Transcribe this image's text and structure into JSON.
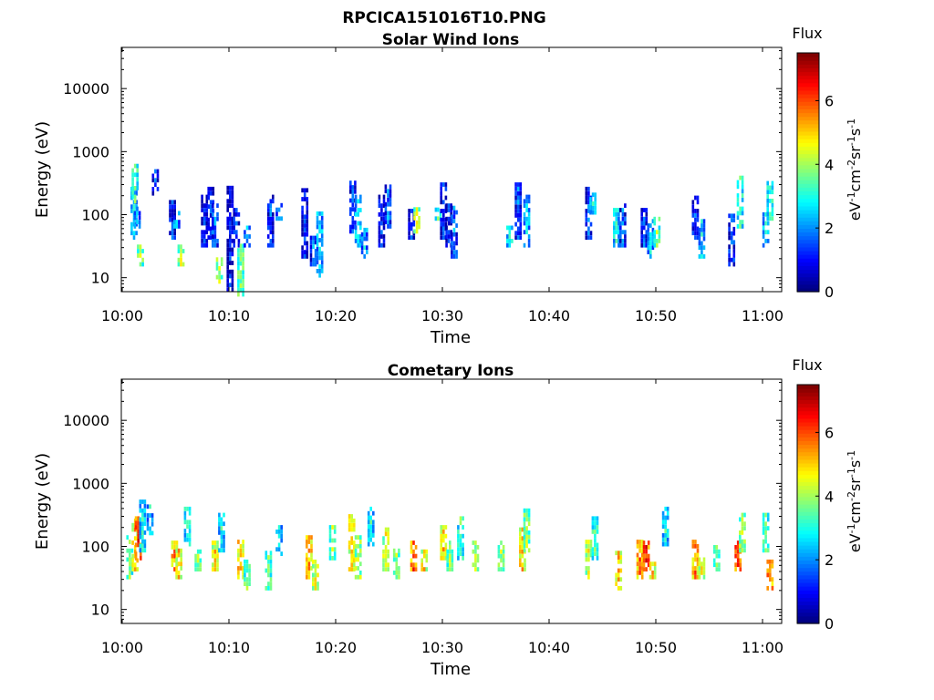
{
  "figure": {
    "title_line1": "RPCICA151016T10.PNG",
    "title_line2": "Solar Wind Ions"
  },
  "chart_data": [
    {
      "type": "heatmap",
      "title": "Solar Wind Ions",
      "xlabel": "Time",
      "ylabel": "Energy (eV)",
      "x_ticks": [
        "10:00",
        "10:10",
        "10:20",
        "10:30",
        "10:40",
        "10:50",
        "11:00"
      ],
      "x_range_min": [
        0,
        61
      ],
      "y_scale": "log",
      "y_ticks": [
        10,
        100,
        1000,
        10000
      ],
      "y_range_ev": [
        6,
        45000
      ],
      "colorbar": {
        "label_top": "Flux",
        "units": "eV-1cm-2sr-1s-1",
        "ticks": [
          0,
          2,
          4,
          6
        ],
        "range": [
          0,
          7.5
        ],
        "colormap": "jet"
      },
      "grid": false,
      "cells": [
        [
          1.0,
          40,
          250,
          2.8
        ],
        [
          1.1,
          150,
          600,
          3.6
        ],
        [
          1.3,
          60,
          120,
          2.2
        ],
        [
          1.6,
          15,
          30,
          4.0
        ],
        [
          3.0,
          200,
          500,
          1.4
        ],
        [
          4.6,
          40,
          200,
          1.2
        ],
        [
          5.0,
          60,
          100,
          2.4
        ],
        [
          5.4,
          15,
          30,
          4.2
        ],
        [
          7.6,
          30,
          200,
          1.0
        ],
        [
          8.2,
          40,
          250,
          1.2
        ],
        [
          8.6,
          30,
          150,
          1.8
        ],
        [
          9.0,
          8,
          20,
          4.2
        ],
        [
          10.0,
          6,
          250,
          0.9
        ],
        [
          10.6,
          30,
          120,
          1.6
        ],
        [
          11.0,
          5,
          30,
          3.9
        ],
        [
          11.6,
          30,
          60,
          2.4
        ],
        [
          13.8,
          30,
          200,
          1.4
        ],
        [
          14.6,
          80,
          150,
          2.0
        ],
        [
          17.0,
          20,
          250,
          1.2
        ],
        [
          17.8,
          15,
          40,
          1.8
        ],
        [
          18.4,
          10,
          100,
          2.6
        ],
        [
          21.5,
          50,
          300,
          1.4
        ],
        [
          22.0,
          30,
          200,
          2.8
        ],
        [
          22.6,
          20,
          60,
          2.4
        ],
        [
          24.2,
          30,
          200,
          1.2
        ],
        [
          24.8,
          60,
          300,
          1.8
        ],
        [
          27.0,
          40,
          120,
          1.2
        ],
        [
          27.5,
          50,
          120,
          4.4
        ],
        [
          29.5,
          80,
          120,
          3.4
        ],
        [
          30.0,
          40,
          300,
          1.4
        ],
        [
          30.5,
          30,
          150,
          1.2
        ],
        [
          31.0,
          20,
          120,
          1.8
        ],
        [
          36.2,
          30,
          60,
          3.0
        ],
        [
          37.0,
          40,
          300,
          1.6
        ],
        [
          37.8,
          30,
          200,
          2.4
        ],
        [
          43.6,
          40,
          250,
          1.4
        ],
        [
          44.0,
          100,
          200,
          2.6
        ],
        [
          46.2,
          30,
          120,
          3.0
        ],
        [
          46.8,
          30,
          150,
          1.6
        ],
        [
          48.8,
          30,
          120,
          1.4
        ],
        [
          49.4,
          20,
          80,
          2.6
        ],
        [
          50.0,
          30,
          80,
          3.8
        ],
        [
          53.6,
          40,
          200,
          1.4
        ],
        [
          54.2,
          20,
          80,
          2.6
        ],
        [
          57.0,
          15,
          100,
          1.6
        ],
        [
          57.8,
          60,
          400,
          3.4
        ],
        [
          60.2,
          30,
          100,
          2.8
        ],
        [
          60.6,
          80,
          300,
          3.4
        ]
      ]
    },
    {
      "type": "heatmap",
      "title": "Cometary Ions",
      "xlabel": "Time",
      "ylabel": "Energy (eV)",
      "x_ticks": [
        "10:00",
        "10:10",
        "10:20",
        "10:30",
        "10:40",
        "10:50",
        "11:00"
      ],
      "x_range_min": [
        0,
        61
      ],
      "y_scale": "log",
      "y_ticks": [
        10,
        100,
        1000,
        10000
      ],
      "y_range_ev": [
        6,
        45000
      ],
      "colorbar": {
        "label_top": "Flux",
        "units": "eV-1cm-2sr-1s-1",
        "ticks": [
          0,
          2,
          4,
          6
        ],
        "range": [
          0,
          7.5
        ],
        "colormap": "jet"
      },
      "grid": false,
      "cells": [
        [
          0.6,
          30,
          150,
          3.6
        ],
        [
          1.1,
          40,
          250,
          5.2
        ],
        [
          1.4,
          60,
          300,
          6.4
        ],
        [
          1.8,
          80,
          500,
          3.0
        ],
        [
          2.5,
          150,
          400,
          2.6
        ],
        [
          4.8,
          40,
          120,
          5.6
        ],
        [
          5.2,
          30,
          80,
          5.0
        ],
        [
          6.0,
          100,
          400,
          3.2
        ],
        [
          7.0,
          40,
          80,
          3.8
        ],
        [
          8.6,
          40,
          120,
          4.8
        ],
        [
          9.2,
          80,
          300,
          3.0
        ],
        [
          11.0,
          30,
          120,
          5.4
        ],
        [
          11.6,
          20,
          60,
          3.8
        ],
        [
          13.6,
          20,
          80,
          3.6
        ],
        [
          14.6,
          60,
          200,
          2.8
        ],
        [
          17.4,
          30,
          150,
          5.4
        ],
        [
          18.0,
          20,
          60,
          4.6
        ],
        [
          19.6,
          60,
          200,
          4.0
        ],
        [
          21.4,
          40,
          300,
          5.0
        ],
        [
          22.0,
          30,
          150,
          4.4
        ],
        [
          23.2,
          100,
          400,
          3.0
        ],
        [
          24.6,
          40,
          200,
          4.6
        ],
        [
          25.6,
          30,
          80,
          4.0
        ],
        [
          27.2,
          40,
          120,
          6.0
        ],
        [
          28.2,
          40,
          100,
          5.0
        ],
        [
          30.0,
          60,
          200,
          5.0
        ],
        [
          30.6,
          40,
          120,
          4.0
        ],
        [
          31.6,
          60,
          300,
          3.4
        ],
        [
          33.0,
          40,
          120,
          4.0
        ],
        [
          35.4,
          40,
          120,
          4.0
        ],
        [
          37.4,
          40,
          200,
          5.2
        ],
        [
          37.8,
          80,
          400,
          4.0
        ],
        [
          43.6,
          30,
          120,
          4.4
        ],
        [
          44.2,
          60,
          300,
          3.4
        ],
        [
          46.4,
          20,
          80,
          5.2
        ],
        [
          48.4,
          30,
          120,
          5.8
        ],
        [
          49.0,
          40,
          120,
          6.4
        ],
        [
          49.6,
          30,
          60,
          5.0
        ],
        [
          50.8,
          100,
          400,
          3.0
        ],
        [
          53.6,
          30,
          120,
          5.6
        ],
        [
          54.2,
          30,
          60,
          4.6
        ],
        [
          55.6,
          40,
          100,
          3.8
        ],
        [
          57.6,
          40,
          120,
          6.4
        ],
        [
          58.0,
          80,
          300,
          4.2
        ],
        [
          60.6,
          20,
          60,
          6.0
        ],
        [
          60.2,
          80,
          300,
          3.6
        ]
      ]
    }
  ]
}
